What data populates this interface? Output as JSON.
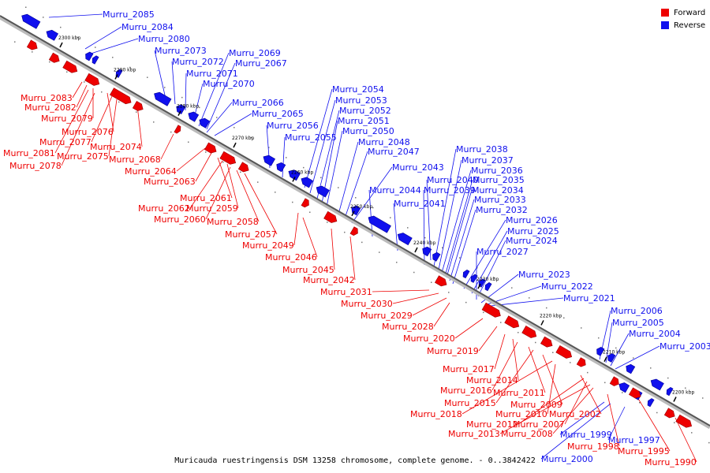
{
  "caption": "Muricauda ruestringensis DSM 13258 chromosome, complete genome. - 0..3842422",
  "legend": [
    {
      "label": "Forward",
      "color": "#ee0000"
    },
    {
      "label": "Reverse",
      "color": "#1010ee"
    }
  ],
  "ticks": [
    "2300 kbp",
    "2290 kbp",
    "2280 kbp",
    "2270 kbp",
    "2260 kbp",
    "2250 kbp",
    "2240 kbp",
    "2230 kbp",
    "2220 kbp",
    "2210 kbp",
    "2200 kbp"
  ],
  "reverse_genes": [
    "Murru_2085",
    "Murru_2084",
    "Murru_2080",
    "Murru_2073",
    "Murru_2072",
    "Murru_2071",
    "Murru_2070",
    "Murru_2069",
    "Murru_2067",
    "Murru_2066",
    "Murru_2065",
    "Murru_2056",
    "Murru_2055",
    "Murru_2054",
    "Murru_2053",
    "Murru_2052",
    "Murru_2051",
    "Murru_2050",
    "Murru_2048",
    "Murru_2047",
    "Murru_2043",
    "Murru_2044",
    "Murru_2041",
    "Murru_2040",
    "Murru_2039",
    "Murru_2038",
    "Murru_2037",
    "Murru_2036",
    "Murru_2035",
    "Murru_2034",
    "Murru_2033",
    "Murru_2032",
    "Murru_2026",
    "Murru_2025",
    "Murru_2024",
    "Murru_2027",
    "Murru_2023",
    "Murru_2022",
    "Murru_2021",
    "Murru_2006",
    "Murru_2005",
    "Murru_2004",
    "Murru_2003",
    "Murru_1999",
    "Murru_2000",
    "Murru_1997"
  ],
  "forward_genes": [
    "Murru_2083",
    "Murru_2082",
    "Murru_2079",
    "Murru_2076",
    "Murru_2077",
    "Murru_2081",
    "Murru_2075",
    "Murru_2074",
    "Murru_2078",
    "Murru_2068",
    "Murru_2064",
    "Murru_2063",
    "Murru_2061",
    "Murru_2062",
    "Murru_2059",
    "Murru_2060",
    "Murru_2058",
    "Murru_2057",
    "Murru_2049",
    "Murru_2046",
    "Murru_2045",
    "Murru_2042",
    "Murru_2031",
    "Murru_2030",
    "Murru_2029",
    "Murru_2028",
    "Murru_2020",
    "Murru_2019",
    "Murru_2017",
    "Murru_2014",
    "Murru_2016",
    "Murru_2011",
    "Murru_2015",
    "Murru_2009",
    "Murru_2018",
    "Murru_2010",
    "Murru_2002",
    "Murru_2012",
    "Murru_2007",
    "Murru_2013",
    "Murru_2008",
    "Murru_1998",
    "Murru_1995",
    "Murru_1990"
  ]
}
